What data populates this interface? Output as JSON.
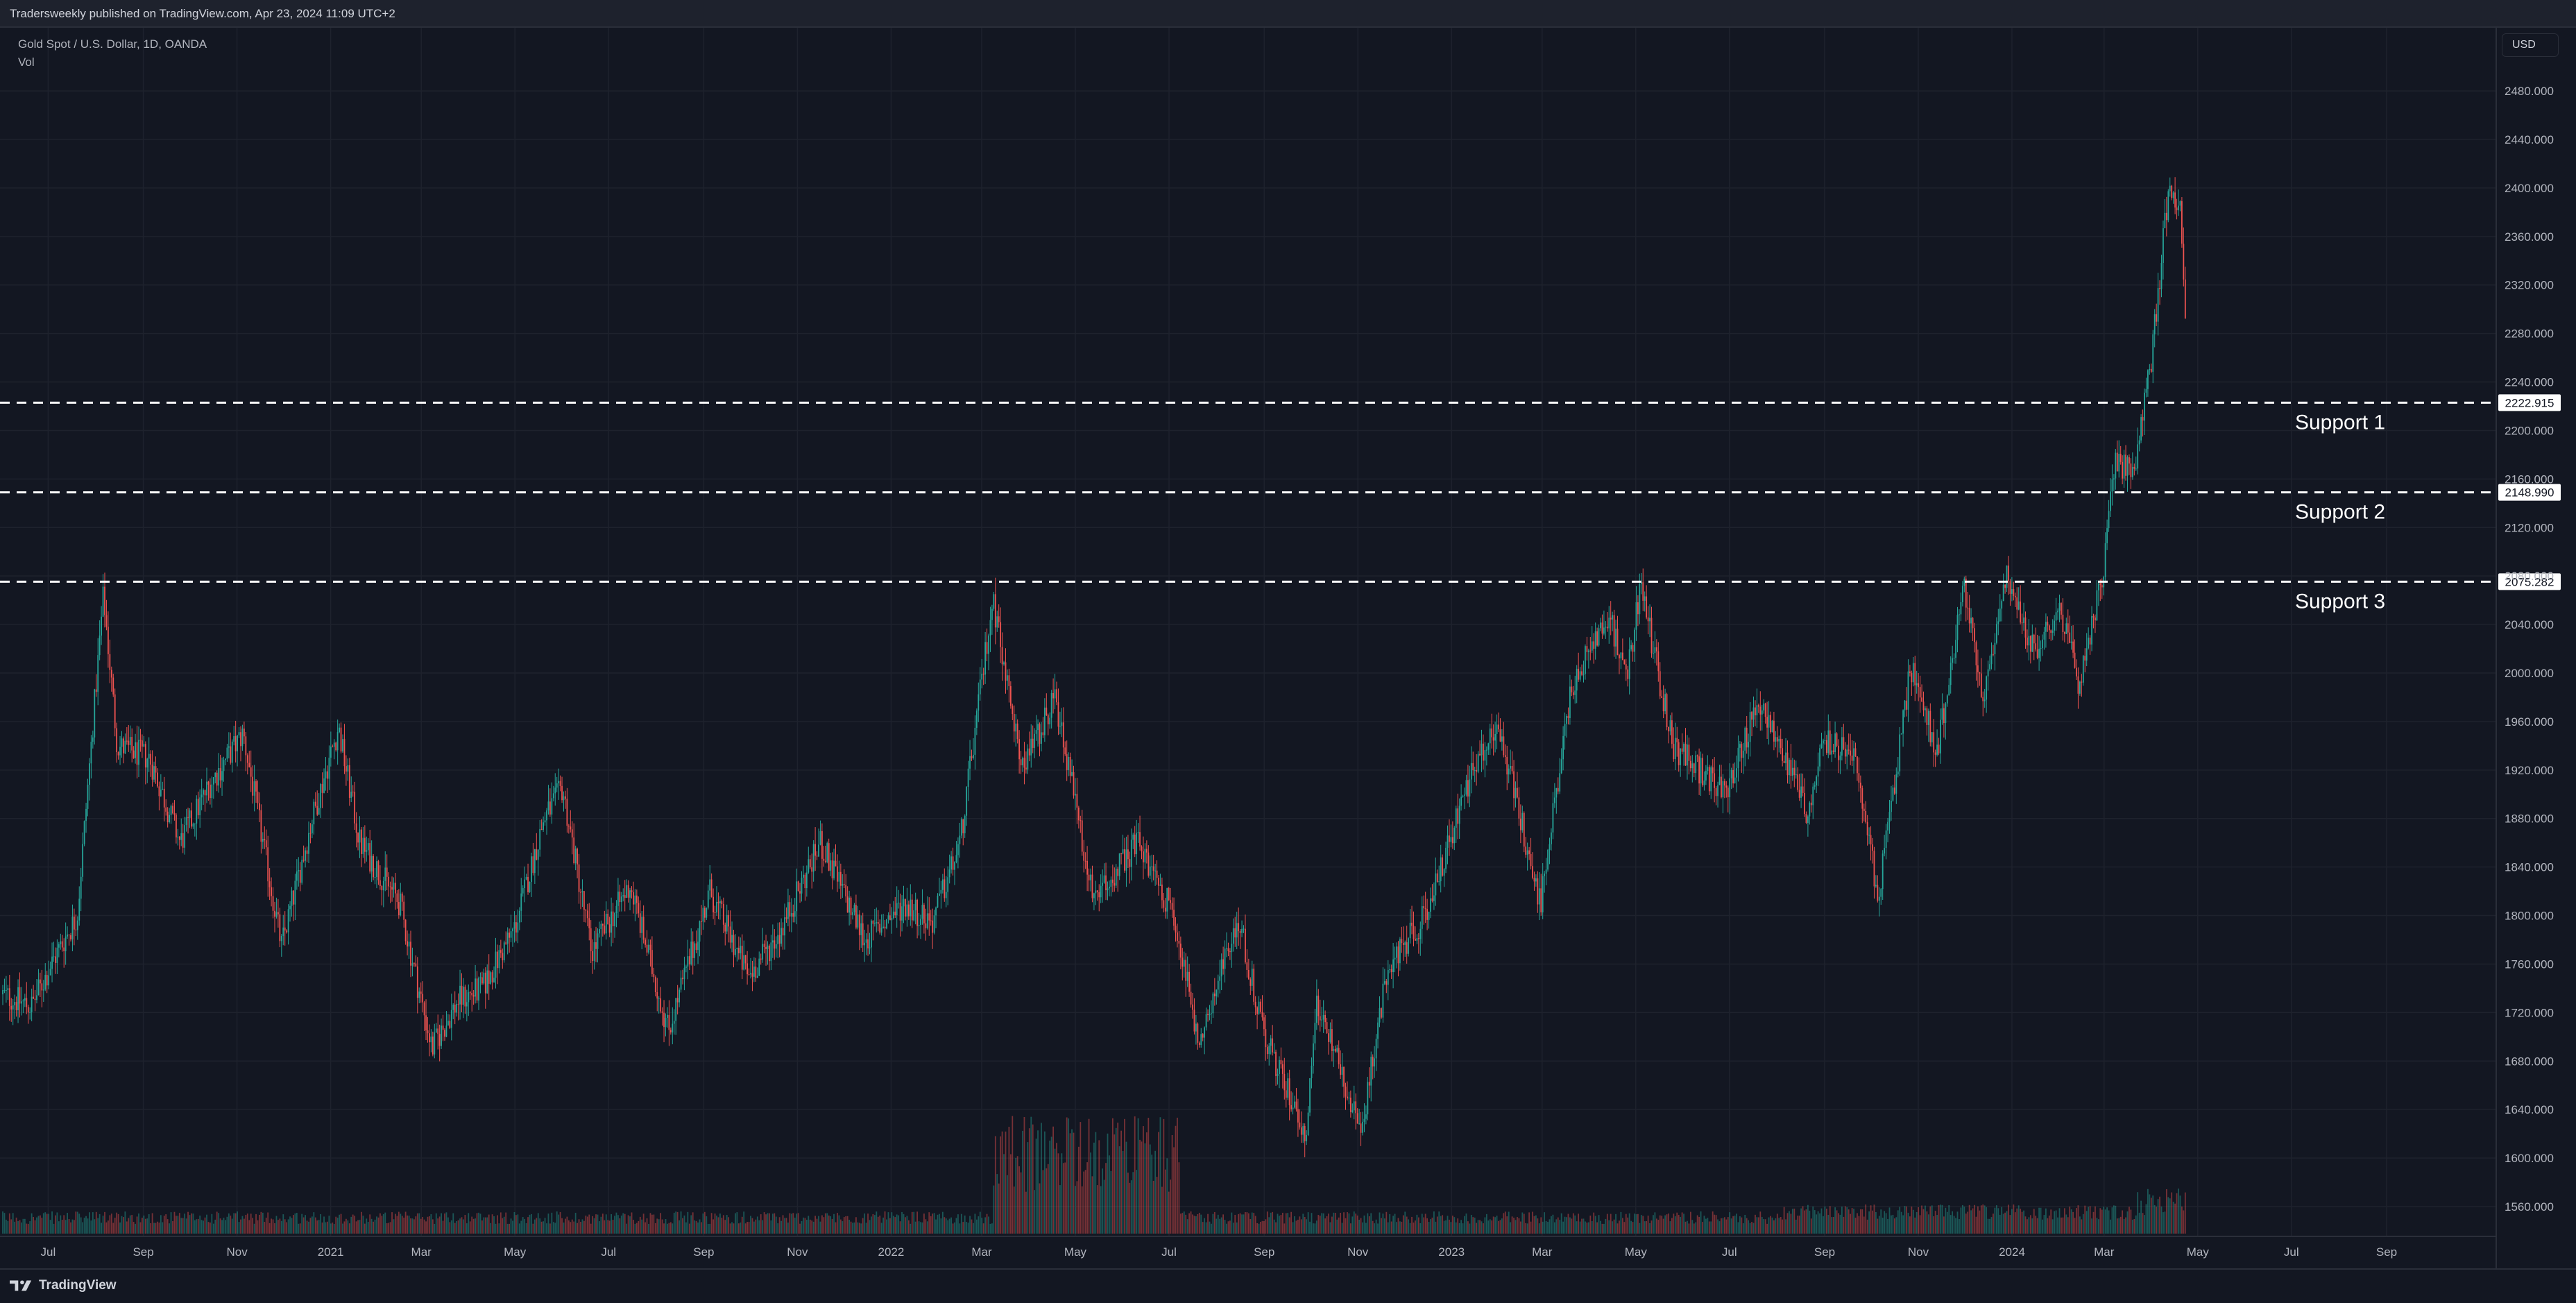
{
  "header": {
    "publish_info": "Tradersweekly published on TradingView.com, Apr 23, 2024 11:09 UTC+2"
  },
  "legend": {
    "symbol": "Gold Spot / U.S. Dollar, 1D, OANDA",
    "volume_label": "Vol"
  },
  "currency_button": {
    "label": "USD"
  },
  "footer": {
    "brand": "TradingView"
  },
  "colors": {
    "background": "#131722",
    "up": "#26a69a",
    "down": "#ef5350",
    "grid": "#1e222d",
    "support_line": "#ffffff",
    "axis_text": "#b2b5be"
  },
  "chart_data": {
    "type": "candlestick",
    "symbol": "Gold Spot / U.S. Dollar, 1D, OANDA",
    "price_axis": {
      "ticks": [
        "2480.000",
        "2440.000",
        "2400.000",
        "2360.000",
        "2320.000",
        "2280.000",
        "2240.000",
        "2200.000",
        "2160.000",
        "2120.000",
        "2080.000",
        "2040.000",
        "2000.000",
        "1960.000",
        "1920.000",
        "1880.000",
        "1840.000",
        "1800.000",
        "1760.000",
        "1720.000",
        "1680.000",
        "1640.000",
        "1600.000",
        "1560.000"
      ]
    },
    "time_axis": {
      "ticks": [
        {
          "label": "Jul",
          "date": "2020-07-01"
        },
        {
          "label": "Sep",
          "date": "2020-09-01"
        },
        {
          "label": "Nov",
          "date": "2020-11-01"
        },
        {
          "label": "2021",
          "date": "2021-01-01"
        },
        {
          "label": "Mar",
          "date": "2021-03-01"
        },
        {
          "label": "May",
          "date": "2021-05-01"
        },
        {
          "label": "Jul",
          "date": "2021-07-01"
        },
        {
          "label": "Sep",
          "date": "2021-09-01"
        },
        {
          "label": "Nov",
          "date": "2021-11-01"
        },
        {
          "label": "2022",
          "date": "2022-01-01"
        },
        {
          "label": "Mar",
          "date": "2022-03-01"
        },
        {
          "label": "May",
          "date": "2022-05-01"
        },
        {
          "label": "Jul",
          "date": "2022-07-01"
        },
        {
          "label": "Sep",
          "date": "2022-09-01"
        },
        {
          "label": "Nov",
          "date": "2022-11-01"
        },
        {
          "label": "2023",
          "date": "2023-01-01"
        },
        {
          "label": "Mar",
          "date": "2023-03-01"
        },
        {
          "label": "May",
          "date": "2023-05-01"
        },
        {
          "label": "Jul",
          "date": "2023-07-01"
        },
        {
          "label": "Sep",
          "date": "2023-09-01"
        },
        {
          "label": "Nov",
          "date": "2023-11-01"
        },
        {
          "label": "2024",
          "date": "2024-01-01"
        },
        {
          "label": "Mar",
          "date": "2024-03-01"
        },
        {
          "label": "May",
          "date": "2024-05-01"
        },
        {
          "label": "Jul",
          "date": "2024-07-01"
        },
        {
          "label": "Sep",
          "date": "2024-09-01"
        }
      ]
    },
    "support_levels": [
      {
        "label": "Support 1",
        "price": 2222.915,
        "tag": "2222.915"
      },
      {
        "label": "Support 2",
        "price": 2148.99,
        "tag": "2148.990"
      },
      {
        "label": "Support 3",
        "price": 2075.282,
        "tag": "2075.282"
      }
    ],
    "price_path": [
      {
        "date": "2020-06-01",
        "price": 1735
      },
      {
        "date": "2020-06-20",
        "price": 1725
      },
      {
        "date": "2020-07-05",
        "price": 1765
      },
      {
        "date": "2020-07-20",
        "price": 1800
      },
      {
        "date": "2020-08-06",
        "price": 2065
      },
      {
        "date": "2020-08-15",
        "price": 1940
      },
      {
        "date": "2020-09-05",
        "price": 1930
      },
      {
        "date": "2020-09-25",
        "price": 1860
      },
      {
        "date": "2020-10-15",
        "price": 1910
      },
      {
        "date": "2020-11-05",
        "price": 1950
      },
      {
        "date": "2020-11-30",
        "price": 1775
      },
      {
        "date": "2020-12-20",
        "price": 1880
      },
      {
        "date": "2021-01-06",
        "price": 1955
      },
      {
        "date": "2021-01-20",
        "price": 1860
      },
      {
        "date": "2021-02-15",
        "price": 1810
      },
      {
        "date": "2021-03-08",
        "price": 1690
      },
      {
        "date": "2021-03-25",
        "price": 1730
      },
      {
        "date": "2021-04-10",
        "price": 1740
      },
      {
        "date": "2021-05-01",
        "price": 1790
      },
      {
        "date": "2021-05-20",
        "price": 1880
      },
      {
        "date": "2021-06-01",
        "price": 1905
      },
      {
        "date": "2021-06-20",
        "price": 1770
      },
      {
        "date": "2021-07-15",
        "price": 1825
      },
      {
        "date": "2021-08-09",
        "price": 1705
      },
      {
        "date": "2021-09-05",
        "price": 1820
      },
      {
        "date": "2021-09-30",
        "price": 1750
      },
      {
        "date": "2021-10-20",
        "price": 1785
      },
      {
        "date": "2021-11-16",
        "price": 1860
      },
      {
        "date": "2021-12-15",
        "price": 1780
      },
      {
        "date": "2022-01-10",
        "price": 1810
      },
      {
        "date": "2022-01-28",
        "price": 1795
      },
      {
        "date": "2022-02-15",
        "price": 1860
      },
      {
        "date": "2022-03-08",
        "price": 2060
      },
      {
        "date": "2022-03-28",
        "price": 1920
      },
      {
        "date": "2022-04-18",
        "price": 1980
      },
      {
        "date": "2022-05-13",
        "price": 1810
      },
      {
        "date": "2022-06-10",
        "price": 1860
      },
      {
        "date": "2022-07-05",
        "price": 1800
      },
      {
        "date": "2022-07-21",
        "price": 1690
      },
      {
        "date": "2022-08-15",
        "price": 1800
      },
      {
        "date": "2022-09-01",
        "price": 1700
      },
      {
        "date": "2022-09-28",
        "price": 1620
      },
      {
        "date": "2022-10-05",
        "price": 1730
      },
      {
        "date": "2022-11-03",
        "price": 1620
      },
      {
        "date": "2022-11-20",
        "price": 1755
      },
      {
        "date": "2022-12-15",
        "price": 1800
      },
      {
        "date": "2023-01-15",
        "price": 1920
      },
      {
        "date": "2023-02-01",
        "price": 1955
      },
      {
        "date": "2023-02-28",
        "price": 1810
      },
      {
        "date": "2023-03-20",
        "price": 1990
      },
      {
        "date": "2023-04-13",
        "price": 2050
      },
      {
        "date": "2023-04-25",
        "price": 1990
      },
      {
        "date": "2023-05-04",
        "price": 2075
      },
      {
        "date": "2023-05-25",
        "price": 1940
      },
      {
        "date": "2023-06-29",
        "price": 1900
      },
      {
        "date": "2023-07-20",
        "price": 1980
      },
      {
        "date": "2023-08-21",
        "price": 1885
      },
      {
        "date": "2023-09-01",
        "price": 1945
      },
      {
        "date": "2023-09-20",
        "price": 1930
      },
      {
        "date": "2023-10-06",
        "price": 1815
      },
      {
        "date": "2023-10-27",
        "price": 2005
      },
      {
        "date": "2023-11-13",
        "price": 1935
      },
      {
        "date": "2023-12-01",
        "price": 2070
      },
      {
        "date": "2023-12-13",
        "price": 1975
      },
      {
        "date": "2023-12-28",
        "price": 2080
      },
      {
        "date": "2024-01-15",
        "price": 2020
      },
      {
        "date": "2024-02-02",
        "price": 2050
      },
      {
        "date": "2024-02-14",
        "price": 1990
      },
      {
        "date": "2024-03-01",
        "price": 2085
      },
      {
        "date": "2024-03-08",
        "price": 2180
      },
      {
        "date": "2024-03-20",
        "price": 2160
      },
      {
        "date": "2024-04-01",
        "price": 2260
      },
      {
        "date": "2024-04-12",
        "price": 2400
      },
      {
        "date": "2024-04-19",
        "price": 2390
      },
      {
        "date": "2024-04-23",
        "price": 2300
      }
    ]
  }
}
